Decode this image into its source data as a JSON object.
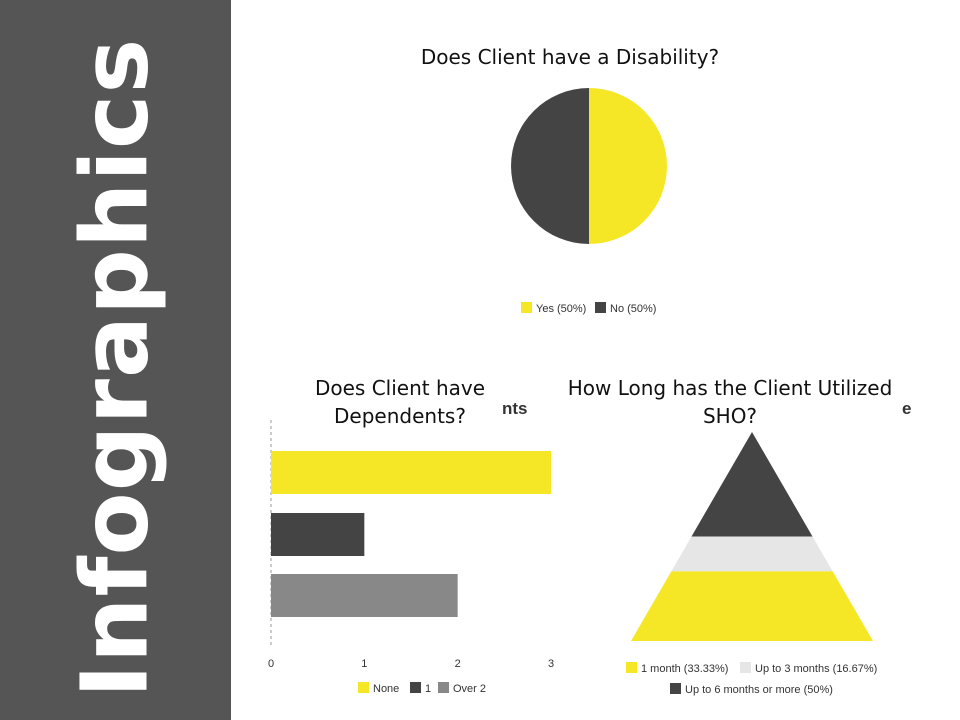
{
  "sidebar": {
    "title": "Infographics",
    "bg_color": "#555555"
  },
  "chart_data": [
    {
      "type": "pie",
      "title": "Does Client have a Disability?",
      "slices": [
        {
          "label": "Yes (50%)",
          "value": 50,
          "color": "#f5e626"
        },
        {
          "label": "No (50%)",
          "value": 50,
          "color": "#444444"
        }
      ],
      "legend": "bottom"
    },
    {
      "type": "bar",
      "orientation": "horizontal",
      "title": "Does Client have Dependents?",
      "ghost_title_fragment": "nts",
      "categories": [
        "None",
        "1",
        "Over 2"
      ],
      "values": [
        3,
        1,
        2
      ],
      "colors": [
        "#f5e626",
        "#444444",
        "#888888"
      ],
      "xticks": [
        "0",
        "1",
        "2",
        "3"
      ],
      "xlim": [
        0,
        3
      ],
      "legend": "bottom"
    },
    {
      "type": "pyramid",
      "title": "How Long has the Client Utilized SHO?",
      "ghost_title_fragment": "e",
      "segments": [
        {
          "label": "Up to 6 months or more (50%)",
          "value": 50,
          "color": "#444444"
        },
        {
          "label": "Up to 3 months (16.67%)",
          "value": 16.67,
          "color": "#e6e6e6"
        },
        {
          "label": "1 month (33.33%)",
          "value": 33.33,
          "color": "#f5e626"
        }
      ],
      "legend_order": [
        "1 month (33.33%)",
        "Up to 3 months (16.67%)",
        "Up to 6 months or more (50%)"
      ],
      "legend": "bottom"
    }
  ]
}
